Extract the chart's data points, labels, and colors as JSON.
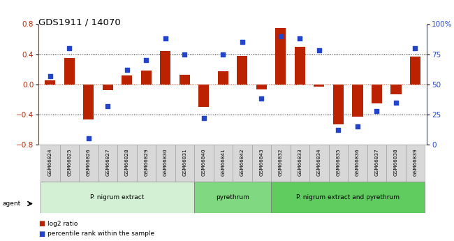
{
  "title": "GDS1911 / 14070",
  "samples": [
    "GSM66824",
    "GSM66825",
    "GSM66826",
    "GSM66827",
    "GSM66828",
    "GSM66829",
    "GSM66830",
    "GSM66831",
    "GSM66840",
    "GSM66841",
    "GSM66842",
    "GSM66843",
    "GSM66832",
    "GSM66833",
    "GSM66834",
    "GSM66835",
    "GSM66836",
    "GSM66837",
    "GSM66838",
    "GSM66839"
  ],
  "log2_ratio": [
    0.05,
    0.35,
    -0.47,
    -0.08,
    0.12,
    0.18,
    0.44,
    0.13,
    -0.3,
    0.17,
    0.38,
    -0.07,
    0.75,
    0.5,
    -0.03,
    -0.53,
    -0.43,
    -0.25,
    -0.13,
    0.37
  ],
  "percentile": [
    57,
    80,
    5,
    32,
    62,
    70,
    88,
    75,
    22,
    75,
    85,
    38,
    90,
    88,
    78,
    12,
    15,
    28,
    35,
    80
  ],
  "bar_color": "#bb2200",
  "dot_color": "#2244cc",
  "ylim_left": [
    -0.8,
    0.8
  ],
  "ylim_right": [
    0,
    100
  ],
  "yticks_left": [
    -0.8,
    -0.4,
    0.0,
    0.4,
    0.8
  ],
  "yticks_right": [
    0,
    25,
    50,
    75,
    100
  ],
  "ytick_labels_right": [
    "0",
    "25",
    "50",
    "75",
    "100%"
  ],
  "hlines_dotted": [
    0.4,
    -0.4
  ],
  "hline_red": 0.0,
  "groups": [
    {
      "label": "P. nigrum extract",
      "start": 0,
      "end": 8,
      "color": "#d4f0d4"
    },
    {
      "label": "pyrethrum",
      "start": 8,
      "end": 12,
      "color": "#80d880"
    },
    {
      "label": "P. nigrum extract and pyrethrum",
      "start": 12,
      "end": 20,
      "color": "#60cc60"
    }
  ],
  "agent_label": "agent",
  "legend_items": [
    {
      "label": "log2 ratio",
      "color": "#bb2200"
    },
    {
      "label": "percentile rank within the sample",
      "color": "#2244cc"
    }
  ],
  "bg_color": "#ffffff",
  "bar_width": 0.55
}
